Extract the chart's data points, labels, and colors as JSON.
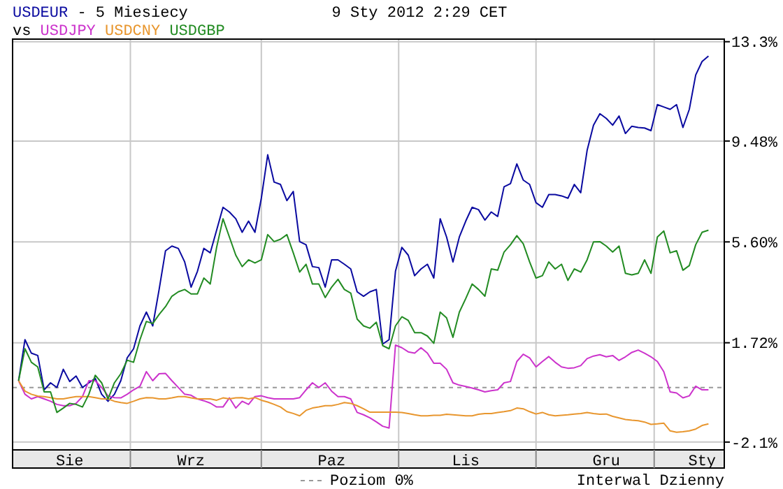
{
  "chart_data": {
    "type": "line",
    "title": "9 Sty 2012 2:29 CET",
    "subtitle": "- 5 Miesiecy",
    "annotations": [
      "vs",
      "Interwal Dzienny"
    ],
    "categories": [
      null,
      null,
      null,
      null,
      null,
      null,
      null,
      null,
      "Sie",
      null,
      null,
      null,
      null,
      null,
      null,
      null,
      null,
      null,
      null,
      null,
      null,
      null,
      null,
      null,
      null,
      null,
      null,
      "Wrz",
      null,
      null,
      null,
      null,
      null,
      null,
      null,
      null,
      null,
      null,
      null,
      null,
      null,
      null,
      null,
      null,
      null,
      null,
      null,
      null,
      null,
      "Paz",
      null,
      null,
      null,
      null,
      null,
      null,
      null,
      null,
      null,
      null,
      null,
      null,
      null,
      null,
      null,
      null,
      null,
      null,
      null,
      null,
      "Lis",
      null,
      null,
      null,
      null,
      null,
      null,
      null,
      null,
      null,
      null,
      null,
      null,
      null,
      null,
      null,
      null,
      null,
      null,
      null,
      null,
      null,
      "Gru",
      null,
      null,
      null,
      null,
      null,
      null,
      null,
      null,
      null,
      null,
      null,
      null,
      null,
      null,
      "Sty",
      null
    ],
    "series": [
      {
        "name": "USDEUR",
        "color": "#0a0aa0",
        "values": [
          0.26,
          1.84,
          1.32,
          1.23,
          -0.09,
          0.18,
          0.0,
          0.7,
          0.23,
          0.44,
          0.0,
          0.18,
          0.35,
          -0.26,
          -0.53,
          -0.26,
          0.26,
          1.14,
          1.49,
          2.37,
          2.9,
          2.37,
          3.77,
          5.26,
          5.44,
          5.35,
          4.83,
          3.86,
          4.47,
          5.35,
          5.18,
          6.05,
          6.93,
          6.75,
          6.49,
          5.97,
          6.4,
          5.97,
          7.28,
          8.95,
          7.9,
          7.81,
          7.19,
          7.54,
          5.61,
          5.49,
          4.65,
          4.61,
          3.86,
          4.91,
          4.91,
          4.74,
          4.56,
          3.68,
          3.51,
          3.68,
          3.77,
          1.67,
          1.84,
          4.47,
          5.39,
          5.09,
          4.3,
          4.56,
          4.74,
          4.21,
          6.49,
          5.79,
          4.83,
          5.79,
          6.4,
          6.93,
          6.84,
          6.44,
          6.75,
          6.58,
          7.72,
          7.84,
          8.6,
          7.98,
          7.81,
          7.11,
          6.93,
          7.42,
          7.42,
          7.37,
          7.28,
          7.81,
          7.49,
          9.12,
          10.09,
          10.53,
          10.35,
          10.09,
          10.44,
          9.77,
          10.05,
          10.0,
          9.98,
          9.88,
          10.88,
          10.79,
          10.7,
          10.88,
          10.0,
          10.7,
          12.02,
          12.54,
          12.75
        ]
      },
      {
        "name": "USDJPY",
        "color": "#cc33cc",
        "values": [
          0.26,
          -0.26,
          -0.44,
          -0.35,
          -0.44,
          -0.53,
          -0.65,
          -0.7,
          -0.7,
          -0.61,
          -0.35,
          0.26,
          0.26,
          0.0,
          -0.32,
          -0.39,
          -0.4,
          -0.26,
          -0.09,
          0.05,
          0.61,
          0.26,
          0.53,
          0.54,
          0.26,
          0.0,
          -0.26,
          -0.3,
          -0.44,
          -0.51,
          -0.6,
          -0.75,
          -0.75,
          -0.4,
          -0.79,
          -0.53,
          -0.65,
          -0.35,
          -0.32,
          -0.39,
          -0.44,
          -0.44,
          -0.44,
          -0.44,
          -0.39,
          -0.09,
          0.18,
          0.0,
          0.18,
          -0.14,
          -0.35,
          -0.35,
          -0.44,
          -0.96,
          -1.05,
          -1.17,
          -1.32,
          -1.49,
          -1.56,
          1.63,
          1.53,
          1.37,
          1.32,
          1.53,
          1.32,
          0.93,
          0.93,
          0.7,
          0.18,
          0.09,
          0.04,
          -0.02,
          -0.09,
          -0.17,
          -0.12,
          -0.09,
          0.18,
          0.23,
          1.0,
          1.28,
          1.14,
          0.79,
          1.0,
          1.19,
          0.97,
          0.79,
          0.74,
          0.76,
          0.84,
          1.11,
          1.21,
          1.26,
          1.18,
          1.23,
          1.04,
          1.18,
          1.35,
          1.44,
          1.32,
          1.18,
          1.0,
          0.61,
          -0.17,
          -0.21,
          -0.4,
          -0.32,
          0.05,
          -0.09,
          -0.09
        ]
      },
      {
        "name": "USDCNY",
        "color": "#e8962e",
        "values": [
          0.26,
          -0.14,
          -0.26,
          -0.33,
          -0.35,
          -0.39,
          -0.44,
          -0.44,
          -0.39,
          -0.35,
          -0.35,
          -0.35,
          -0.39,
          -0.44,
          -0.44,
          -0.53,
          -0.58,
          -0.61,
          -0.53,
          -0.44,
          -0.39,
          -0.4,
          -0.44,
          -0.44,
          -0.4,
          -0.35,
          -0.35,
          -0.4,
          -0.44,
          -0.44,
          -0.44,
          -0.49,
          -0.4,
          -0.44,
          -0.4,
          -0.39,
          -0.44,
          -0.39,
          -0.49,
          -0.56,
          -0.65,
          -0.75,
          -0.93,
          -1.0,
          -1.09,
          -0.88,
          -0.79,
          -0.75,
          -0.7,
          -0.7,
          -0.65,
          -0.58,
          -0.61,
          -0.7,
          -0.82,
          -0.95,
          -0.95,
          -0.95,
          -0.95,
          -0.95,
          -0.96,
          -1.0,
          -1.05,
          -1.09,
          -1.09,
          -1.07,
          -1.07,
          -1.03,
          -1.05,
          -1.07,
          -1.09,
          -1.09,
          -1.03,
          -1.0,
          -1.0,
          -0.96,
          -0.93,
          -0.89,
          -0.79,
          -0.82,
          -0.93,
          -1.02,
          -0.96,
          -1.05,
          -1.09,
          -1.07,
          -1.05,
          -1.02,
          -1.0,
          -0.96,
          -1.0,
          -1.03,
          -1.02,
          -1.11,
          -1.17,
          -1.23,
          -1.26,
          -1.28,
          -1.33,
          -1.42,
          -1.4,
          -1.37,
          -1.67,
          -1.72,
          -1.7,
          -1.67,
          -1.6,
          -1.46,
          -1.4
        ]
      },
      {
        "name": "USDGBP",
        "color": "#228b22",
        "values": [
          0.26,
          1.49,
          0.97,
          0.79,
          -0.17,
          -0.17,
          -0.96,
          -0.79,
          -0.61,
          -0.65,
          -0.75,
          -0.26,
          0.47,
          0.18,
          -0.44,
          0.18,
          0.53,
          1.05,
          0.97,
          1.84,
          2.54,
          2.46,
          2.81,
          3.11,
          3.51,
          3.68,
          3.77,
          3.6,
          3.6,
          4.21,
          3.98,
          5.39,
          6.49,
          5.79,
          5.09,
          4.65,
          4.91,
          4.79,
          4.91,
          5.88,
          5.61,
          5.7,
          5.88,
          5.18,
          4.44,
          4.74,
          3.98,
          3.98,
          3.46,
          3.86,
          4.16,
          3.77,
          3.63,
          2.63,
          2.37,
          2.28,
          2.51,
          1.61,
          1.49,
          2.37,
          2.72,
          2.58,
          2.11,
          2.11,
          1.98,
          1.7,
          2.9,
          2.68,
          1.93,
          2.9,
          3.42,
          3.98,
          3.77,
          3.51,
          4.56,
          4.51,
          5.21,
          5.49,
          5.84,
          5.53,
          4.83,
          4.21,
          4.3,
          4.83,
          4.56,
          4.74,
          4.12,
          4.56,
          4.44,
          4.91,
          5.6,
          5.61,
          5.44,
          5.21,
          5.44,
          4.39,
          4.33,
          4.39,
          4.91,
          4.39,
          5.79,
          6.02,
          5.18,
          5.26,
          4.51,
          4.69,
          5.49,
          5.97,
          6.05
        ]
      }
    ],
    "ylim": [
      -2.4,
      13.4
    ],
    "yticks": [
      {
        "value": -2.1,
        "label": "-2.1%"
      },
      {
        "value": 1.72,
        "label": "1.72%"
      },
      {
        "value": 5.6,
        "label": "5.60%"
      },
      {
        "value": 9.48,
        "label": "9.48%"
      },
      {
        "value": 13.3,
        "label": "13.3%"
      }
    ],
    "grid": true,
    "legend": "bottom",
    "ref_lines": [
      {
        "axis": "y",
        "value": 0,
        "label": "Poziom 0%",
        "color": "#999999",
        "line_style": "dashed"
      }
    ]
  }
}
